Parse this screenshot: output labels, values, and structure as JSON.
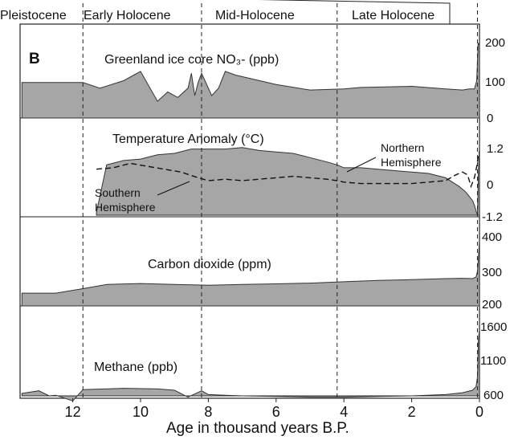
{
  "figure": {
    "panel_label": "B",
    "periods": [
      "Pleistocene",
      "Early Holocene",
      "Mid-Holocene",
      "Late Holocene"
    ],
    "boundaries_ka": [
      11.7,
      8.2,
      4.2,
      0.06
    ],
    "xlabel": "Age in thousand years B.P.",
    "fill_color": "#a6a6a6",
    "line_color": "#333333"
  },
  "chart_data": [
    {
      "type": "area",
      "title": "Greenland ice core NO₃- (ppb)",
      "xlim": [
        13.5,
        0
      ],
      "ylim": [
        0,
        200
      ],
      "yticks": [
        "200",
        "100",
        "0"
      ],
      "x": [
        13.5,
        12.5,
        11.7,
        11.2,
        10.5,
        10.0,
        9.5,
        9.2,
        8.9,
        8.6,
        8.5,
        8.4,
        8.3,
        8.2,
        7.9,
        7.7,
        7.5,
        7.2,
        6.0,
        5.0,
        4.0,
        3.5,
        2.0,
        1.0,
        0.5,
        0.3,
        0.15,
        0.08,
        0.04,
        0.0
      ],
      "y": [
        95,
        95,
        95,
        80,
        100,
        125,
        45,
        70,
        55,
        80,
        120,
        60,
        95,
        120,
        60,
        80,
        125,
        115,
        90,
        75,
        78,
        82,
        85,
        78,
        75,
        78,
        78,
        100,
        200,
        195
      ]
    },
    {
      "type": "area",
      "title": "Temperature Anomaly (°C)",
      "ylim": [
        -1.2,
        1.2
      ],
      "yticks": [
        "1.2",
        "0",
        "-1.2"
      ],
      "series": [
        {
          "name": "Northern Hemisphere",
          "type": "area",
          "x": [
            11.3,
            11.0,
            10.5,
            10.0,
            9.5,
            9.0,
            8.5,
            8.0,
            7.5,
            7.0,
            6.5,
            6.0,
            5.5,
            5.0,
            4.5,
            4.2,
            4.0,
            3.5,
            3.0,
            2.5,
            2.0,
            1.5,
            1.0,
            0.6,
            0.4,
            0.3,
            0.2,
            0.15,
            0.1,
            0.06,
            0.03,
            0.0
          ],
          "y": [
            -1.1,
            0.55,
            0.7,
            0.75,
            0.9,
            0.95,
            1.1,
            1.1,
            1.1,
            1.15,
            1.05,
            1.0,
            0.95,
            0.8,
            0.65,
            0.55,
            0.45,
            0.45,
            0.4,
            0.35,
            0.3,
            0.25,
            0.1,
            -0.2,
            -0.4,
            -0.55,
            -0.7,
            -0.85,
            -1.05,
            -1.2,
            0.3,
            1.2
          ]
        },
        {
          "name": "Southern Hemisphere",
          "type": "line",
          "x": [
            11.3,
            10.8,
            10.3,
            9.8,
            9.3,
            8.8,
            8.3,
            8.0,
            7.5,
            7.0,
            6.5,
            6.0,
            5.5,
            5.0,
            4.5,
            4.2,
            4.0,
            3.5,
            3.0,
            2.5,
            2.0,
            1.5,
            1.0,
            0.7,
            0.5,
            0.35,
            0.25,
            0.15,
            0.08,
            0.03,
            0.0
          ],
          "y": [
            0.4,
            0.45,
            0.6,
            0.5,
            0.4,
            0.3,
            0.1,
            0.0,
            0.05,
            0.0,
            0.05,
            0.1,
            0.15,
            0.1,
            0.05,
            0.0,
            -0.05,
            -0.1,
            -0.1,
            -0.1,
            -0.1,
            -0.05,
            0.0,
            0.2,
            0.3,
            0.2,
            -0.2,
            0.1,
            0.5,
            0.9,
            1.0
          ]
        }
      ]
    },
    {
      "type": "area",
      "title": "Carbon dioxide (ppm)",
      "ylim": [
        200,
        400
      ],
      "yticks": [
        "400",
        "300",
        "200"
      ],
      "x": [
        13.5,
        12.5,
        11.7,
        11.0,
        10.0,
        9.0,
        8.0,
        7.0,
        6.0,
        5.0,
        4.0,
        3.0,
        2.0,
        1.0,
        0.5,
        0.2,
        0.1,
        0.06,
        0.03,
        0.0
      ],
      "y": [
        237,
        237,
        250,
        262,
        265,
        262,
        260,
        262,
        264,
        266,
        270,
        274,
        276,
        279,
        280,
        279,
        284,
        300,
        340,
        390
      ]
    },
    {
      "type": "area",
      "title": "Methane (ppb)",
      "ylim": [
        600,
        1700
      ],
      "yticks": [
        "1600",
        "1100",
        "600"
      ],
      "x": [
        13.5,
        13.0,
        12.7,
        12.5,
        12.0,
        11.7,
        11.0,
        10.5,
        10.0,
        9.5,
        9.0,
        8.6,
        8.2,
        8.0,
        7.5,
        7.0,
        6.0,
        5.0,
        4.0,
        3.0,
        2.0,
        1.0,
        0.5,
        0.2,
        0.1,
        0.06,
        0.03,
        0.0
      ],
      "y": [
        640,
        680,
        600,
        610,
        520,
        700,
        710,
        720,
        715,
        710,
        690,
        580,
        680,
        620,
        610,
        600,
        590,
        580,
        580,
        590,
        600,
        620,
        650,
        690,
        750,
        900,
        1500,
        1650
      ]
    }
  ],
  "annotations": {
    "north": [
      "Northern",
      "Hemisphere"
    ],
    "south": [
      "Southern",
      "Hemisphere"
    ]
  },
  "xticks": [
    "12",
    "10",
    "8",
    "6",
    "4",
    "2",
    "0"
  ]
}
